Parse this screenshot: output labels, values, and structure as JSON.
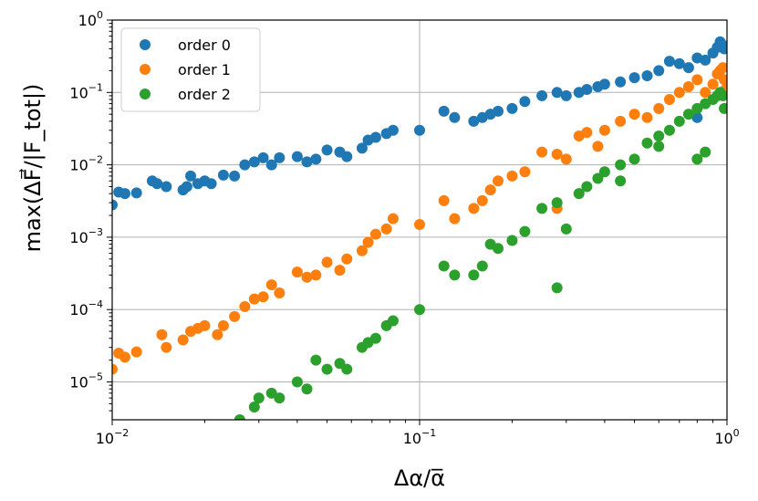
{
  "chart_data": {
    "type": "scatter",
    "title": "",
    "xlabel": "Δα/α̅",
    "ylabel": "max(ΔF⃗/|F_tot|)",
    "xscale": "log",
    "yscale": "log",
    "xlim": [
      0.01,
      1.0
    ],
    "ylim": [
      3e-06,
      1.0
    ],
    "grid": true,
    "legend_position": "top-left",
    "x_ticks": [
      {
        "value": 0.01,
        "base": "10",
        "exp": "−2"
      },
      {
        "value": 0.1,
        "base": "10",
        "exp": "−1"
      },
      {
        "value": 1.0,
        "base": "10",
        "exp": "0"
      }
    ],
    "y_ticks": [
      {
        "value": 1e-05,
        "base": "10",
        "exp": "−5"
      },
      {
        "value": 0.0001,
        "base": "10",
        "exp": "−4"
      },
      {
        "value": 0.001,
        "base": "10",
        "exp": "−3"
      },
      {
        "value": 0.01,
        "base": "10",
        "exp": "−2"
      },
      {
        "value": 0.1,
        "base": "10",
        "exp": "−1"
      },
      {
        "value": 1.0,
        "base": "10",
        "exp": "0"
      }
    ],
    "series": [
      {
        "name": "order 0",
        "color": "#1f77b4",
        "points": [
          [
            0.01,
            0.0028
          ],
          [
            0.0105,
            0.0042
          ],
          [
            0.011,
            0.004
          ],
          [
            0.012,
            0.0041
          ],
          [
            0.0135,
            0.006
          ],
          [
            0.014,
            0.0055
          ],
          [
            0.015,
            0.005
          ],
          [
            0.017,
            0.0045
          ],
          [
            0.0175,
            0.005
          ],
          [
            0.018,
            0.007
          ],
          [
            0.019,
            0.0055
          ],
          [
            0.02,
            0.006
          ],
          [
            0.021,
            0.0055
          ],
          [
            0.023,
            0.0072
          ],
          [
            0.025,
            0.007
          ],
          [
            0.027,
            0.01
          ],
          [
            0.029,
            0.011
          ],
          [
            0.031,
            0.0125
          ],
          [
            0.033,
            0.01
          ],
          [
            0.035,
            0.0125
          ],
          [
            0.04,
            0.013
          ],
          [
            0.043,
            0.011
          ],
          [
            0.046,
            0.012
          ],
          [
            0.05,
            0.016
          ],
          [
            0.055,
            0.015
          ],
          [
            0.058,
            0.013
          ],
          [
            0.065,
            0.017
          ],
          [
            0.068,
            0.022
          ],
          [
            0.072,
            0.024
          ],
          [
            0.078,
            0.027
          ],
          [
            0.082,
            0.03
          ],
          [
            0.1,
            0.03
          ],
          [
            0.12,
            0.055
          ],
          [
            0.13,
            0.045
          ],
          [
            0.15,
            0.04
          ],
          [
            0.16,
            0.045
          ],
          [
            0.17,
            0.05
          ],
          [
            0.18,
            0.055
          ],
          [
            0.2,
            0.06
          ],
          [
            0.22,
            0.075
          ],
          [
            0.25,
            0.09
          ],
          [
            0.28,
            0.1
          ],
          [
            0.3,
            0.09
          ],
          [
            0.33,
            0.1
          ],
          [
            0.35,
            0.11
          ],
          [
            0.38,
            0.12
          ],
          [
            0.4,
            0.13
          ],
          [
            0.45,
            0.14
          ],
          [
            0.5,
            0.16
          ],
          [
            0.55,
            0.17
          ],
          [
            0.6,
            0.2
          ],
          [
            0.65,
            0.27
          ],
          [
            0.7,
            0.25
          ],
          [
            0.75,
            0.22
          ],
          [
            0.8,
            0.3
          ],
          [
            0.85,
            0.28
          ],
          [
            0.9,
            0.35
          ],
          [
            0.93,
            0.42
          ],
          [
            0.95,
            0.5
          ],
          [
            0.97,
            0.45
          ],
          [
            0.98,
            0.4
          ],
          [
            0.8,
            0.045
          ]
        ]
      },
      {
        "name": "order 1",
        "color": "#ff7f0e",
        "points": [
          [
            0.01,
            1.5e-05
          ],
          [
            0.0105,
            2.5e-05
          ],
          [
            0.011,
            2.2e-05
          ],
          [
            0.012,
            2.6e-05
          ],
          [
            0.0145,
            4.5e-05
          ],
          [
            0.015,
            3e-05
          ],
          [
            0.017,
            3.8e-05
          ],
          [
            0.018,
            5e-05
          ],
          [
            0.019,
            5.5e-05
          ],
          [
            0.02,
            6e-05
          ],
          [
            0.022,
            4.5e-05
          ],
          [
            0.023,
            6e-05
          ],
          [
            0.025,
            8e-05
          ],
          [
            0.027,
            0.00011
          ],
          [
            0.029,
            0.00014
          ],
          [
            0.031,
            0.00015
          ],
          [
            0.033,
            0.00022
          ],
          [
            0.035,
            0.00017
          ],
          [
            0.04,
            0.00033
          ],
          [
            0.043,
            0.00028
          ],
          [
            0.046,
            0.0003
          ],
          [
            0.05,
            0.00045
          ],
          [
            0.055,
            0.00035
          ],
          [
            0.058,
            0.0005
          ],
          [
            0.065,
            0.00065
          ],
          [
            0.068,
            0.00085
          ],
          [
            0.072,
            0.0011
          ],
          [
            0.078,
            0.0013
          ],
          [
            0.082,
            0.0018
          ],
          [
            0.1,
            0.0015
          ],
          [
            0.12,
            0.0032
          ],
          [
            0.13,
            0.0018
          ],
          [
            0.15,
            0.0025
          ],
          [
            0.16,
            0.0032
          ],
          [
            0.17,
            0.0045
          ],
          [
            0.18,
            0.006
          ],
          [
            0.2,
            0.007
          ],
          [
            0.22,
            0.008
          ],
          [
            0.25,
            0.015
          ],
          [
            0.28,
            0.014
          ],
          [
            0.3,
            0.012
          ],
          [
            0.33,
            0.025
          ],
          [
            0.35,
            0.028
          ],
          [
            0.38,
            0.018
          ],
          [
            0.4,
            0.03
          ],
          [
            0.45,
            0.04
          ],
          [
            0.5,
            0.05
          ],
          [
            0.55,
            0.045
          ],
          [
            0.6,
            0.06
          ],
          [
            0.65,
            0.08
          ],
          [
            0.7,
            0.1
          ],
          [
            0.75,
            0.12
          ],
          [
            0.8,
            0.15
          ],
          [
            0.85,
            0.1
          ],
          [
            0.9,
            0.13
          ],
          [
            0.93,
            0.18
          ],
          [
            0.95,
            0.2
          ],
          [
            0.97,
            0.22
          ],
          [
            0.98,
            0.15
          ],
          [
            0.99,
            0.11
          ],
          [
            0.28,
            0.0025
          ]
        ]
      },
      {
        "name": "order 2",
        "color": "#2ca02c",
        "points": [
          [
            0.026,
            3e-06
          ],
          [
            0.029,
            4.5e-06
          ],
          [
            0.03,
            6e-06
          ],
          [
            0.033,
            7e-06
          ],
          [
            0.035,
            6e-06
          ],
          [
            0.04,
            1e-05
          ],
          [
            0.043,
            8e-06
          ],
          [
            0.046,
            2e-05
          ],
          [
            0.05,
            1.5e-05
          ],
          [
            0.055,
            1.8e-05
          ],
          [
            0.058,
            1.5e-05
          ],
          [
            0.065,
            3e-05
          ],
          [
            0.068,
            3.5e-05
          ],
          [
            0.072,
            4e-05
          ],
          [
            0.078,
            6e-05
          ],
          [
            0.082,
            7e-05
          ],
          [
            0.1,
            0.0001
          ],
          [
            0.12,
            0.0004
          ],
          [
            0.13,
            0.0003
          ],
          [
            0.15,
            0.0003
          ],
          [
            0.16,
            0.0004
          ],
          [
            0.17,
            0.0008
          ],
          [
            0.18,
            0.0007
          ],
          [
            0.2,
            0.0009
          ],
          [
            0.22,
            0.0012
          ],
          [
            0.25,
            0.0025
          ],
          [
            0.28,
            0.003
          ],
          [
            0.3,
            0.0013
          ],
          [
            0.33,
            0.004
          ],
          [
            0.35,
            0.005
          ],
          [
            0.38,
            0.0065
          ],
          [
            0.4,
            0.008
          ],
          [
            0.45,
            0.01
          ],
          [
            0.5,
            0.012
          ],
          [
            0.55,
            0.02
          ],
          [
            0.6,
            0.025
          ],
          [
            0.65,
            0.03
          ],
          [
            0.7,
            0.04
          ],
          [
            0.75,
            0.05
          ],
          [
            0.8,
            0.06
          ],
          [
            0.85,
            0.07
          ],
          [
            0.9,
            0.08
          ],
          [
            0.93,
            0.09
          ],
          [
            0.95,
            0.1
          ],
          [
            0.97,
            0.09
          ],
          [
            0.98,
            0.06
          ],
          [
            0.85,
            0.015
          ],
          [
            0.8,
            0.012
          ],
          [
            0.28,
            0.0002
          ],
          [
            0.45,
            0.006
          ],
          [
            0.6,
            0.018
          ]
        ]
      }
    ]
  }
}
